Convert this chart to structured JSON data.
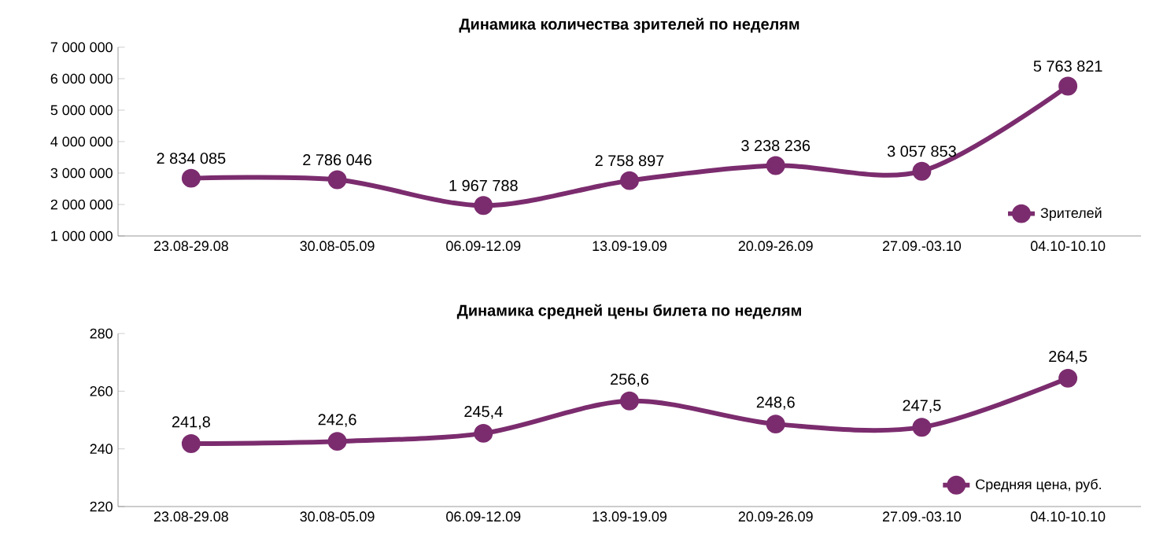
{
  "chart_data": [
    {
      "type": "line",
      "title": "Динамика количества зрителей по неделям",
      "categories": [
        "23.08-29.08",
        "30.08-05.09",
        "06.09-12.09",
        "13.09-19.09",
        "20.09-26.09",
        "27.09.-03.10",
        "04.10-10.10"
      ],
      "series": [
        {
          "name": "Зрителей",
          "color": "#7b2c6e",
          "values": [
            2834085,
            2786046,
            1967788,
            2758897,
            3238236,
            3057853,
            5763821
          ],
          "value_labels": [
            "2 834 085",
            "2 786 046",
            "1 967 788",
            "2 758 897",
            "3 238 236",
            "3 057 853",
            "5 763 821"
          ]
        }
      ],
      "ylim": [
        1000000,
        7000000
      ],
      "yticks": [
        {
          "value": 1000000,
          "label": "1 000 000"
        },
        {
          "value": 2000000,
          "label": "2 000 000"
        },
        {
          "value": 3000000,
          "label": "3 000 000"
        },
        {
          "value": 4000000,
          "label": "4 000 000"
        },
        {
          "value": 5000000,
          "label": "5 000 000"
        },
        {
          "value": 6000000,
          "label": "6 000 000"
        },
        {
          "value": 7000000,
          "label": "7 000 000"
        }
      ],
      "legend": "bottom right",
      "marker": "circle"
    },
    {
      "type": "line",
      "title": "Динамика средней цены билета по неделям",
      "categories": [
        "23.08-29.08",
        "30.08-05.09",
        "06.09-12.09",
        "13.09-19.09",
        "20.09-26.09",
        "27.09.-03.10",
        "04.10-10.10"
      ],
      "series": [
        {
          "name": "Средняя цена, руб.",
          "color": "#7b2c6e",
          "values": [
            241.8,
            242.6,
            245.4,
            256.6,
            248.6,
            247.5,
            264.5
          ],
          "value_labels": [
            "241,8",
            "242,6",
            "245,4",
            "256,6",
            "248,6",
            "247,5",
            "264,5"
          ]
        }
      ],
      "ylim": [
        220,
        280
      ],
      "yticks": [
        220,
        240,
        260,
        280
      ],
      "legend": "bottom right",
      "marker": "circle"
    }
  ]
}
